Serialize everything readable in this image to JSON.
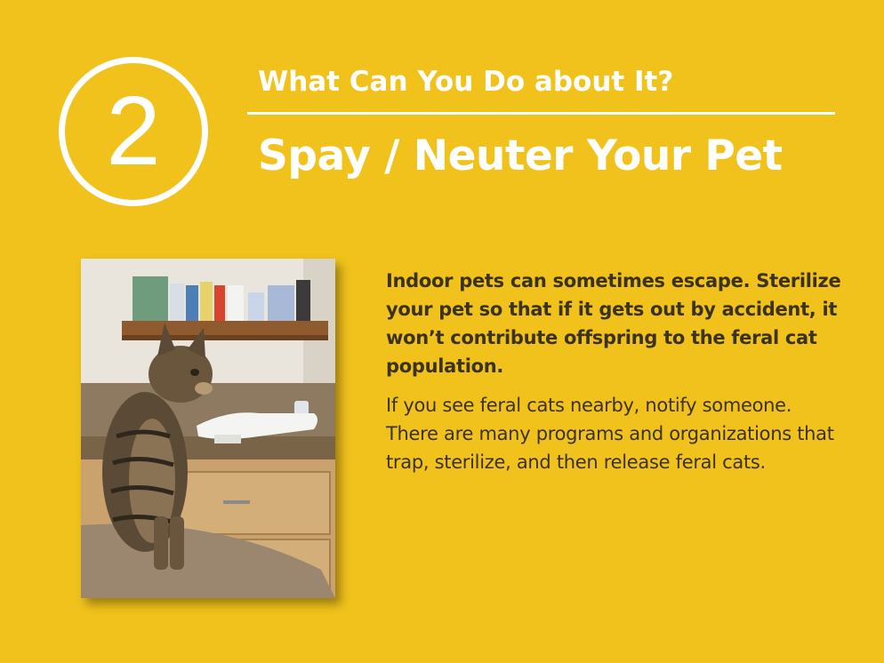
{
  "slide": {
    "step_number": "2",
    "kicker": "What Can You Do about It?",
    "title": "Spay / Neuter Your Pet",
    "paragraphs": {
      "lead": "Indoor pets can sometimes escape. Sterilize your pet so that if it gets out by accident, it won’t contribute offspring to the feral cat population.",
      "secondary": "If you see feral cats nearby, notify someone. There are many programs and organizations that trap, sterilize, and then release feral cats."
    }
  },
  "colors": {
    "background": "#f1c21b",
    "accent_text": "#ffffff",
    "body_text": "#3b3222"
  },
  "icons": {
    "step_badge": "numbered-circle-icon"
  }
}
